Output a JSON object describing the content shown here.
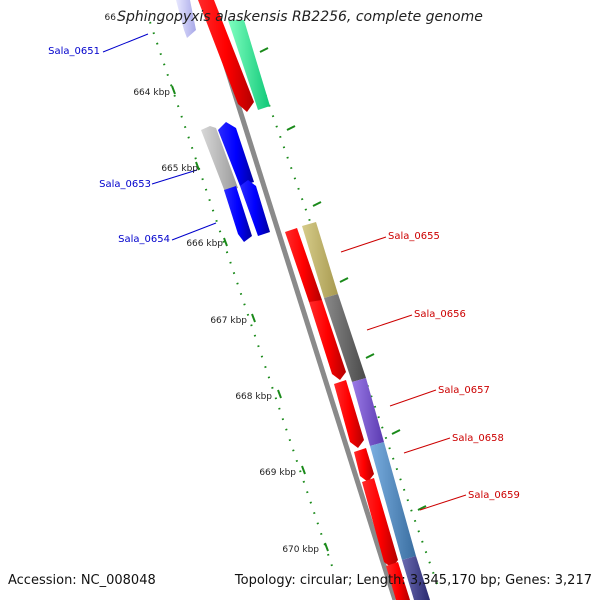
{
  "title": {
    "species": "Sphingopyxis alaskensis RB2256",
    "suffix": ", complete genome"
  },
  "footer": {
    "accession": "Accession: NC_008048",
    "summary": "Topology: circular; Length: 3,345,170 bp; Genes: 3,217"
  },
  "colors": {
    "backbone": "#8a8a8a",
    "tick": "#1a8a1a",
    "left_label": "#0000cc",
    "right_label": "#cc0000"
  },
  "ruler": {
    "labels": [
      "66",
      "664 kbp",
      "665 kbp",
      "666 kbp",
      "667 kbp",
      "668 kbp",
      "669 kbp",
      "670 kbp"
    ]
  },
  "genes_left": [
    {
      "name": "Sala_0651"
    },
    {
      "name": "Sala_0653"
    },
    {
      "name": "Sala_0654"
    }
  ],
  "genes_right": [
    {
      "name": "Sala_0655"
    },
    {
      "name": "Sala_0656"
    },
    {
      "name": "Sala_0657"
    },
    {
      "name": "Sala_0658"
    },
    {
      "name": "Sala_0659"
    }
  ]
}
